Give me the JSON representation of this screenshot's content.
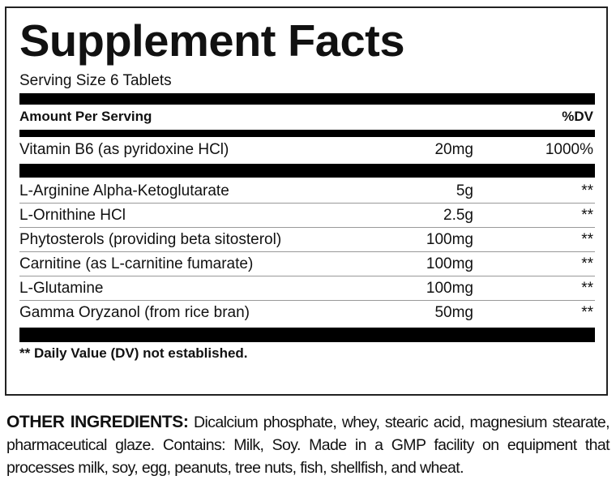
{
  "title": "Supplement Facts",
  "serving_size": "Serving Size 6 Tablets",
  "header": {
    "amount_label": "Amount Per Serving",
    "dv_label": "%DV"
  },
  "vitamins": [
    {
      "name": "Vitamin B6 (as pyridoxine HCl)",
      "amount": "20mg",
      "dv": "1000%"
    }
  ],
  "ingredients": [
    {
      "name": "L-Arginine Alpha-Ketoglutarate",
      "amount": "5g",
      "dv": "**"
    },
    {
      "name": "L-Ornithine HCl",
      "amount": "2.5g",
      "dv": "**"
    },
    {
      "name": "Phytosterols (providing beta sitosterol)",
      "amount": "100mg",
      "dv": "**"
    },
    {
      "name": "Carnitine (as L-carnitine fumarate)",
      "amount": "100mg",
      "dv": "**"
    },
    {
      "name": "L-Glutamine",
      "amount": "100mg",
      "dv": "**"
    },
    {
      "name": "Gamma Oryzanol (from rice bran)",
      "amount": "50mg",
      "dv": "**"
    }
  ],
  "footnote": "** Daily Value (DV) not established.",
  "other_ingredients": {
    "label": "OTHER INGREDIENTS:",
    "text": " Dicalcium phosphate, whey, stearic acid, magnesium stearate, pharmaceutical glaze. Contains: Milk, Soy. Made in a GMP facility on equipment that processes milk, soy, egg, peanuts, tree nuts, fish, shellfish, and wheat."
  }
}
